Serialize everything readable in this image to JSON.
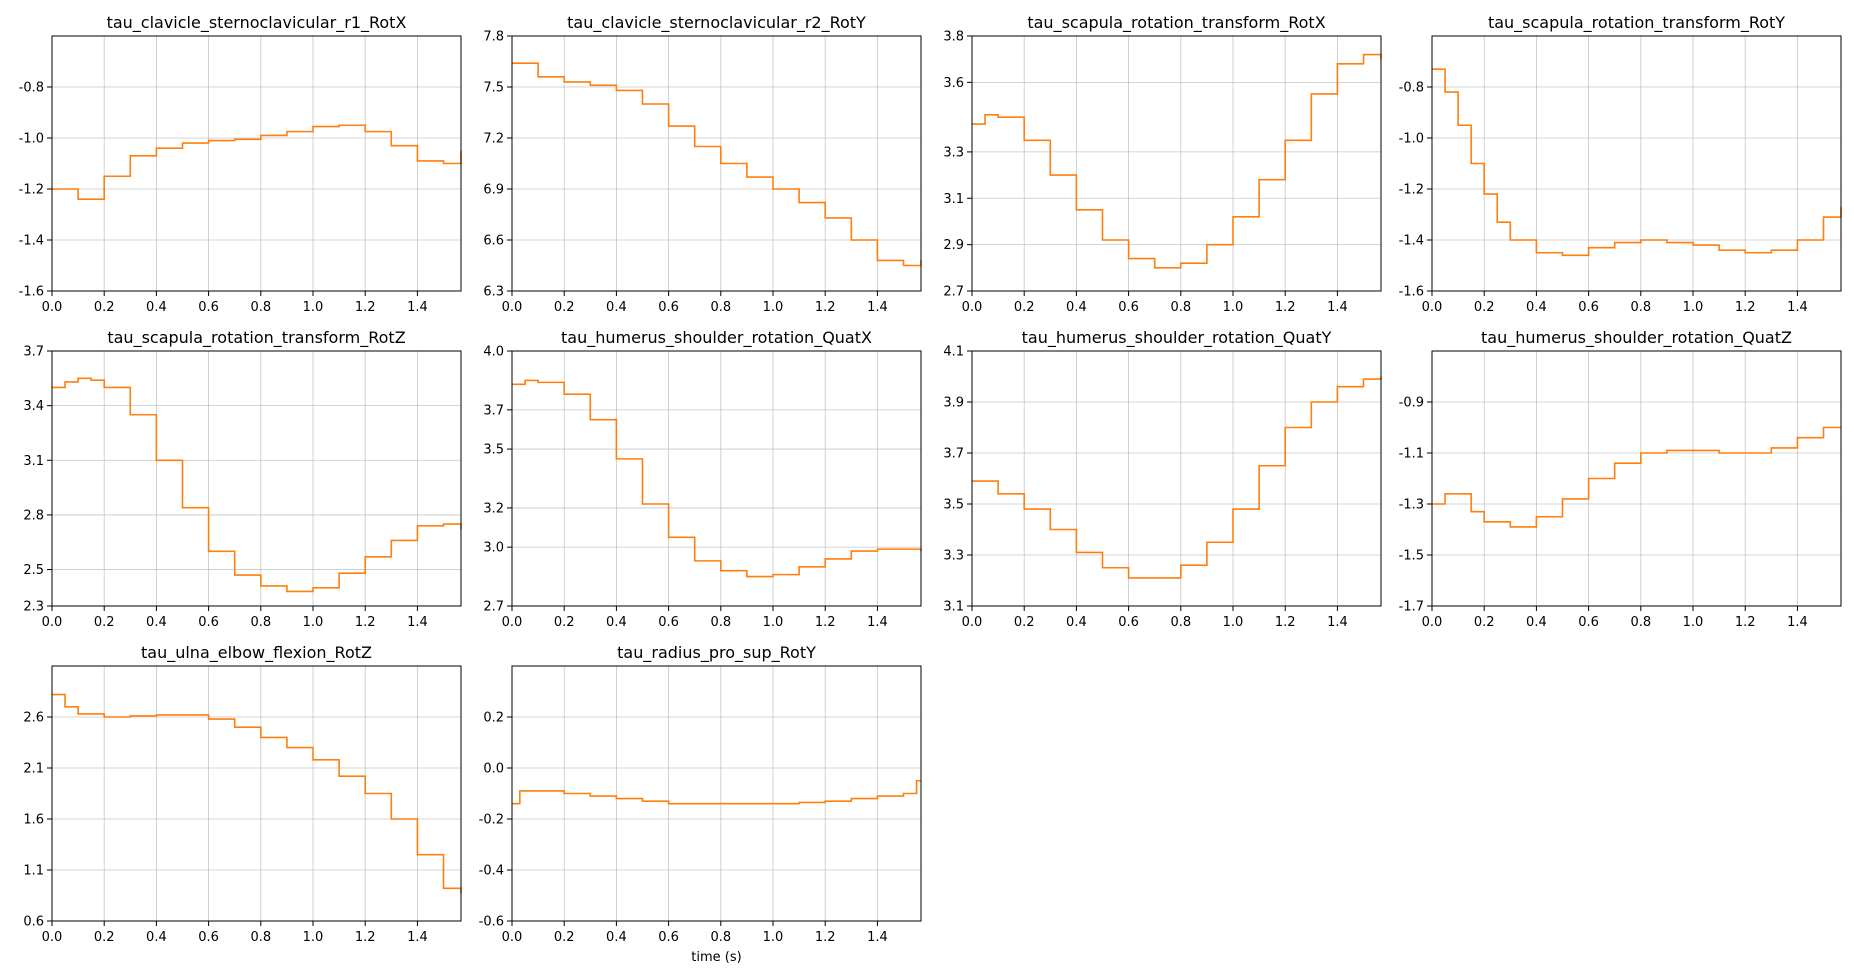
{
  "figure": {
    "series_color": "#ff7f0e",
    "grid": true
  },
  "chart_data": [
    {
      "type": "line",
      "step": true,
      "title": "tau_clavicle_sternoclavicular_r1_RotX",
      "xlabel": "",
      "ylabel": "",
      "xlim": [
        0,
        1.567
      ],
      "ylim": [
        -1.6,
        -0.6
      ],
      "xticks": [
        0,
        0.2,
        0.4,
        0.6,
        0.8,
        1.0,
        1.2,
        1.4
      ],
      "xtick_labels": [
        "0.0",
        "0.2",
        "0.4",
        "0.6",
        "0.8",
        "1.0",
        "1.2",
        "1.4"
      ],
      "yticks": [
        -1.6,
        -1.4,
        -1.2,
        -1.0,
        -0.8
      ],
      "ytick_labels": [
        "-1.6",
        "-1.4",
        "-1.2",
        "-1.0",
        "-0.8"
      ],
      "x": [
        0,
        0.1,
        0.2,
        0.3,
        0.4,
        0.5,
        0.6,
        0.7,
        0.8,
        0.9,
        1.0,
        1.1,
        1.2,
        1.3,
        1.4,
        1.5,
        1.567
      ],
      "y": [
        -1.2,
        -1.24,
        -1.15,
        -1.07,
        -1.04,
        -1.02,
        -1.01,
        -1.005,
        -0.99,
        -0.975,
        -0.955,
        -0.95,
        -0.975,
        -1.03,
        -1.09,
        -1.1,
        -1.05
      ]
    },
    {
      "type": "line",
      "step": true,
      "title": "tau_clavicle_sternoclavicular_r2_RotY",
      "xlabel": "",
      "ylabel": "",
      "xlim": [
        0,
        1.567
      ],
      "ylim": [
        6.3,
        7.8
      ],
      "xticks": [
        0,
        0.2,
        0.4,
        0.6,
        0.8,
        1.0,
        1.2,
        1.4
      ],
      "xtick_labels": [
        "0.0",
        "0.2",
        "0.4",
        "0.6",
        "0.8",
        "1.0",
        "1.2",
        "1.4"
      ],
      "yticks": [
        6.3,
        6.6,
        6.9,
        7.2,
        7.5,
        7.8
      ],
      "ytick_labels": [
        "6.3",
        "6.6",
        "6.9",
        "7.2",
        "7.5",
        "7.8"
      ],
      "x": [
        0,
        0.1,
        0.2,
        0.3,
        0.4,
        0.5,
        0.6,
        0.7,
        0.8,
        0.9,
        1.0,
        1.1,
        1.2,
        1.3,
        1.4,
        1.5,
        1.567
      ],
      "y": [
        7.64,
        7.56,
        7.53,
        7.51,
        7.48,
        7.4,
        7.27,
        7.15,
        7.05,
        6.97,
        6.9,
        6.82,
        6.73,
        6.6,
        6.48,
        6.45,
        6.48
      ]
    },
    {
      "type": "line",
      "step": true,
      "title": "tau_scapula_rotation_transform_RotX",
      "xlabel": "",
      "ylabel": "",
      "xlim": [
        0,
        1.567
      ],
      "ylim": [
        2.7,
        3.8
      ],
      "xticks": [
        0,
        0.2,
        0.4,
        0.6,
        0.8,
        1.0,
        1.2,
        1.4
      ],
      "xtick_labels": [
        "0.0",
        "0.2",
        "0.4",
        "0.6",
        "0.8",
        "1.0",
        "1.2",
        "1.4"
      ],
      "yticks": [
        2.7,
        2.9,
        3.1,
        3.3,
        3.6,
        3.8
      ],
      "ytick_labels": [
        "2.7",
        "2.9",
        "3.1",
        "3.3",
        "3.6",
        "3.8"
      ],
      "x": [
        0,
        0.05,
        0.1,
        0.2,
        0.3,
        0.4,
        0.5,
        0.6,
        0.7,
        0.8,
        0.9,
        1.0,
        1.1,
        1.2,
        1.3,
        1.4,
        1.5,
        1.567
      ],
      "y": [
        3.42,
        3.46,
        3.45,
        3.35,
        3.2,
        3.05,
        2.92,
        2.84,
        2.8,
        2.82,
        2.9,
        3.02,
        3.18,
        3.35,
        3.55,
        3.68,
        3.72,
        3.7
      ]
    },
    {
      "type": "line",
      "step": true,
      "title": "tau_scapula_rotation_transform_RotY",
      "xlabel": "",
      "ylabel": "",
      "xlim": [
        0,
        1.567
      ],
      "ylim": [
        -1.6,
        -0.6
      ],
      "xticks": [
        0,
        0.2,
        0.4,
        0.6,
        0.8,
        1.0,
        1.2,
        1.4
      ],
      "xtick_labels": [
        "0.0",
        "0.2",
        "0.4",
        "0.6",
        "0.8",
        "1.0",
        "1.2",
        "1.4"
      ],
      "yticks": [
        -1.6,
        -1.4,
        -1.2,
        -1.0,
        -0.8
      ],
      "ytick_labels": [
        "-1.6",
        "-1.4",
        "-1.2",
        "-1.0",
        "-0.8"
      ],
      "x": [
        0,
        0.05,
        0.1,
        0.15,
        0.2,
        0.25,
        0.3,
        0.4,
        0.5,
        0.6,
        0.7,
        0.8,
        0.9,
        1.0,
        1.1,
        1.2,
        1.3,
        1.4,
        1.5,
        1.567
      ],
      "y": [
        -0.73,
        -0.82,
        -0.95,
        -1.1,
        -1.22,
        -1.33,
        -1.4,
        -1.45,
        -1.46,
        -1.43,
        -1.41,
        -1.4,
        -1.41,
        -1.42,
        -1.44,
        -1.45,
        -1.44,
        -1.4,
        -1.31,
        -1.27
      ]
    },
    {
      "type": "line",
      "step": true,
      "title": "tau_scapula_rotation_transform_RotZ",
      "xlabel": "",
      "ylabel": "",
      "xlim": [
        0,
        1.567
      ],
      "ylim": [
        2.3,
        3.7
      ],
      "xticks": [
        0,
        0.2,
        0.4,
        0.6,
        0.8,
        1.0,
        1.2,
        1.4
      ],
      "xtick_labels": [
        "0.0",
        "0.2",
        "0.4",
        "0.6",
        "0.8",
        "1.0",
        "1.2",
        "1.4"
      ],
      "yticks": [
        2.3,
        2.5,
        2.8,
        3.1,
        3.4,
        3.7
      ],
      "ytick_labels": [
        "2.3",
        "2.5",
        "2.8",
        "3.1",
        "3.4",
        "3.7"
      ],
      "x": [
        0,
        0.05,
        0.1,
        0.15,
        0.2,
        0.3,
        0.4,
        0.5,
        0.6,
        0.7,
        0.8,
        0.9,
        1.0,
        1.1,
        1.2,
        1.3,
        1.4,
        1.5,
        1.567
      ],
      "y": [
        3.5,
        3.53,
        3.55,
        3.54,
        3.5,
        3.35,
        3.1,
        2.84,
        2.6,
        2.47,
        2.41,
        2.38,
        2.4,
        2.48,
        2.57,
        2.66,
        2.74,
        2.75,
        2.72
      ]
    },
    {
      "type": "line",
      "step": true,
      "title": "tau_humerus_shoulder_rotation_QuatX",
      "xlabel": "",
      "ylabel": "",
      "xlim": [
        0,
        1.567
      ],
      "ylim": [
        2.7,
        4.0
      ],
      "xticks": [
        0,
        0.2,
        0.4,
        0.6,
        0.8,
        1.0,
        1.2,
        1.4
      ],
      "xtick_labels": [
        "0.0",
        "0.2",
        "0.4",
        "0.6",
        "0.8",
        "1.0",
        "1.2",
        "1.4"
      ],
      "yticks": [
        2.7,
        3.0,
        3.2,
        3.5,
        3.7,
        4.0
      ],
      "ytick_labels": [
        "2.7",
        "3.0",
        "3.2",
        "3.5",
        "3.7",
        "4.0"
      ],
      "x": [
        0,
        0.05,
        0.1,
        0.2,
        0.3,
        0.4,
        0.5,
        0.6,
        0.7,
        0.8,
        0.9,
        1.0,
        1.1,
        1.2,
        1.3,
        1.4,
        1.5,
        1.567
      ],
      "y": [
        3.83,
        3.85,
        3.84,
        3.78,
        3.65,
        3.45,
        3.22,
        3.05,
        2.93,
        2.88,
        2.85,
        2.86,
        2.9,
        2.94,
        2.98,
        2.99,
        2.99,
        2.98
      ]
    },
    {
      "type": "line",
      "step": true,
      "title": "tau_humerus_shoulder_rotation_QuatY",
      "xlabel": "",
      "ylabel": "",
      "xlim": [
        0,
        1.567
      ],
      "ylim": [
        3.1,
        4.1
      ],
      "xticks": [
        0,
        0.2,
        0.4,
        0.6,
        0.8,
        1.0,
        1.2,
        1.4
      ],
      "xtick_labels": [
        "0.0",
        "0.2",
        "0.4",
        "0.6",
        "0.8",
        "1.0",
        "1.2",
        "1.4"
      ],
      "yticks": [
        3.1,
        3.3,
        3.5,
        3.7,
        3.9,
        4.1
      ],
      "ytick_labels": [
        "3.1",
        "3.3",
        "3.5",
        "3.7",
        "3.9",
        "4.1"
      ],
      "x": [
        0,
        0.1,
        0.2,
        0.3,
        0.4,
        0.5,
        0.6,
        0.7,
        0.8,
        0.9,
        1.0,
        1.1,
        1.2,
        1.3,
        1.4,
        1.5,
        1.567
      ],
      "y": [
        3.59,
        3.54,
        3.48,
        3.4,
        3.31,
        3.25,
        3.21,
        3.21,
        3.26,
        3.35,
        3.48,
        3.65,
        3.8,
        3.9,
        3.96,
        3.99,
        4.0
      ]
    },
    {
      "type": "line",
      "step": true,
      "title": "tau_humerus_shoulder_rotation_QuatZ",
      "xlabel": "",
      "ylabel": "",
      "xlim": [
        0,
        1.567
      ],
      "ylim": [
        -1.7,
        -0.7
      ],
      "xticks": [
        0,
        0.2,
        0.4,
        0.6,
        0.8,
        1.0,
        1.2,
        1.4
      ],
      "xtick_labels": [
        "0.0",
        "0.2",
        "0.4",
        "0.6",
        "0.8",
        "1.0",
        "1.2",
        "1.4"
      ],
      "yticks": [
        -1.7,
        -1.5,
        -1.3,
        -1.1,
        -0.9
      ],
      "ytick_labels": [
        "-1.7",
        "-1.5",
        "-1.3",
        "-1.1",
        "-0.9"
      ],
      "x": [
        0,
        0.05,
        0.1,
        0.15,
        0.2,
        0.3,
        0.4,
        0.5,
        0.6,
        0.7,
        0.8,
        0.9,
        1.0,
        1.1,
        1.2,
        1.3,
        1.4,
        1.5,
        1.567
      ],
      "y": [
        -1.3,
        -1.26,
        -1.26,
        -1.33,
        -1.37,
        -1.39,
        -1.35,
        -1.28,
        -1.2,
        -1.14,
        -1.1,
        -1.09,
        -1.09,
        -1.1,
        -1.1,
        -1.08,
        -1.04,
        -1.0,
        -1.0
      ]
    },
    {
      "type": "line",
      "step": true,
      "title": "tau_ulna_elbow_flexion_RotZ",
      "xlabel": "",
      "ylabel": "",
      "xlim": [
        0,
        1.567
      ],
      "ylim": [
        0.6,
        3.1
      ],
      "xticks": [
        0,
        0.2,
        0.4,
        0.6,
        0.8,
        1.0,
        1.2,
        1.4
      ],
      "xtick_labels": [
        "0.0",
        "0.2",
        "0.4",
        "0.6",
        "0.8",
        "1.0",
        "1.2",
        "1.4"
      ],
      "yticks": [
        0.6,
        1.1,
        1.6,
        2.1,
        2.6
      ],
      "ytick_labels": [
        "0.6",
        "1.1",
        "1.6",
        "2.1",
        "2.6"
      ],
      "x": [
        0,
        0.05,
        0.1,
        0.2,
        0.3,
        0.4,
        0.5,
        0.6,
        0.7,
        0.8,
        0.9,
        1.0,
        1.1,
        1.2,
        1.3,
        1.4,
        1.5,
        1.567
      ],
      "y": [
        2.82,
        2.7,
        2.63,
        2.6,
        2.61,
        2.62,
        2.62,
        2.58,
        2.5,
        2.4,
        2.3,
        2.18,
        2.02,
        1.85,
        1.6,
        1.25,
        0.92,
        0.87
      ]
    },
    {
      "type": "line",
      "step": true,
      "title": "tau_radius_pro_sup_RotY",
      "xlabel": "time (s)",
      "ylabel": "",
      "xlim": [
        0,
        1.567
      ],
      "ylim": [
        -0.6,
        0.4
      ],
      "xticks": [
        0,
        0.2,
        0.4,
        0.6,
        0.8,
        1.0,
        1.2,
        1.4
      ],
      "xtick_labels": [
        "0.0",
        "0.2",
        "0.4",
        "0.6",
        "0.8",
        "1.0",
        "1.2",
        "1.4"
      ],
      "yticks": [
        -0.6,
        -0.4,
        -0.2,
        0.0,
        0.2
      ],
      "ytick_labels": [
        "-0.6",
        "-0.4",
        "-0.2",
        "0.0",
        "0.2"
      ],
      "x": [
        0,
        0.03,
        0.1,
        0.2,
        0.3,
        0.4,
        0.5,
        0.6,
        0.7,
        0.8,
        0.9,
        1.0,
        1.1,
        1.2,
        1.3,
        1.4,
        1.5,
        1.55,
        1.567
      ],
      "y": [
        -0.14,
        -0.09,
        -0.09,
        -0.1,
        -0.11,
        -0.12,
        -0.13,
        -0.14,
        -0.14,
        -0.14,
        -0.14,
        -0.14,
        -0.135,
        -0.13,
        -0.12,
        -0.11,
        -0.1,
        -0.05,
        -0.05
      ]
    }
  ]
}
